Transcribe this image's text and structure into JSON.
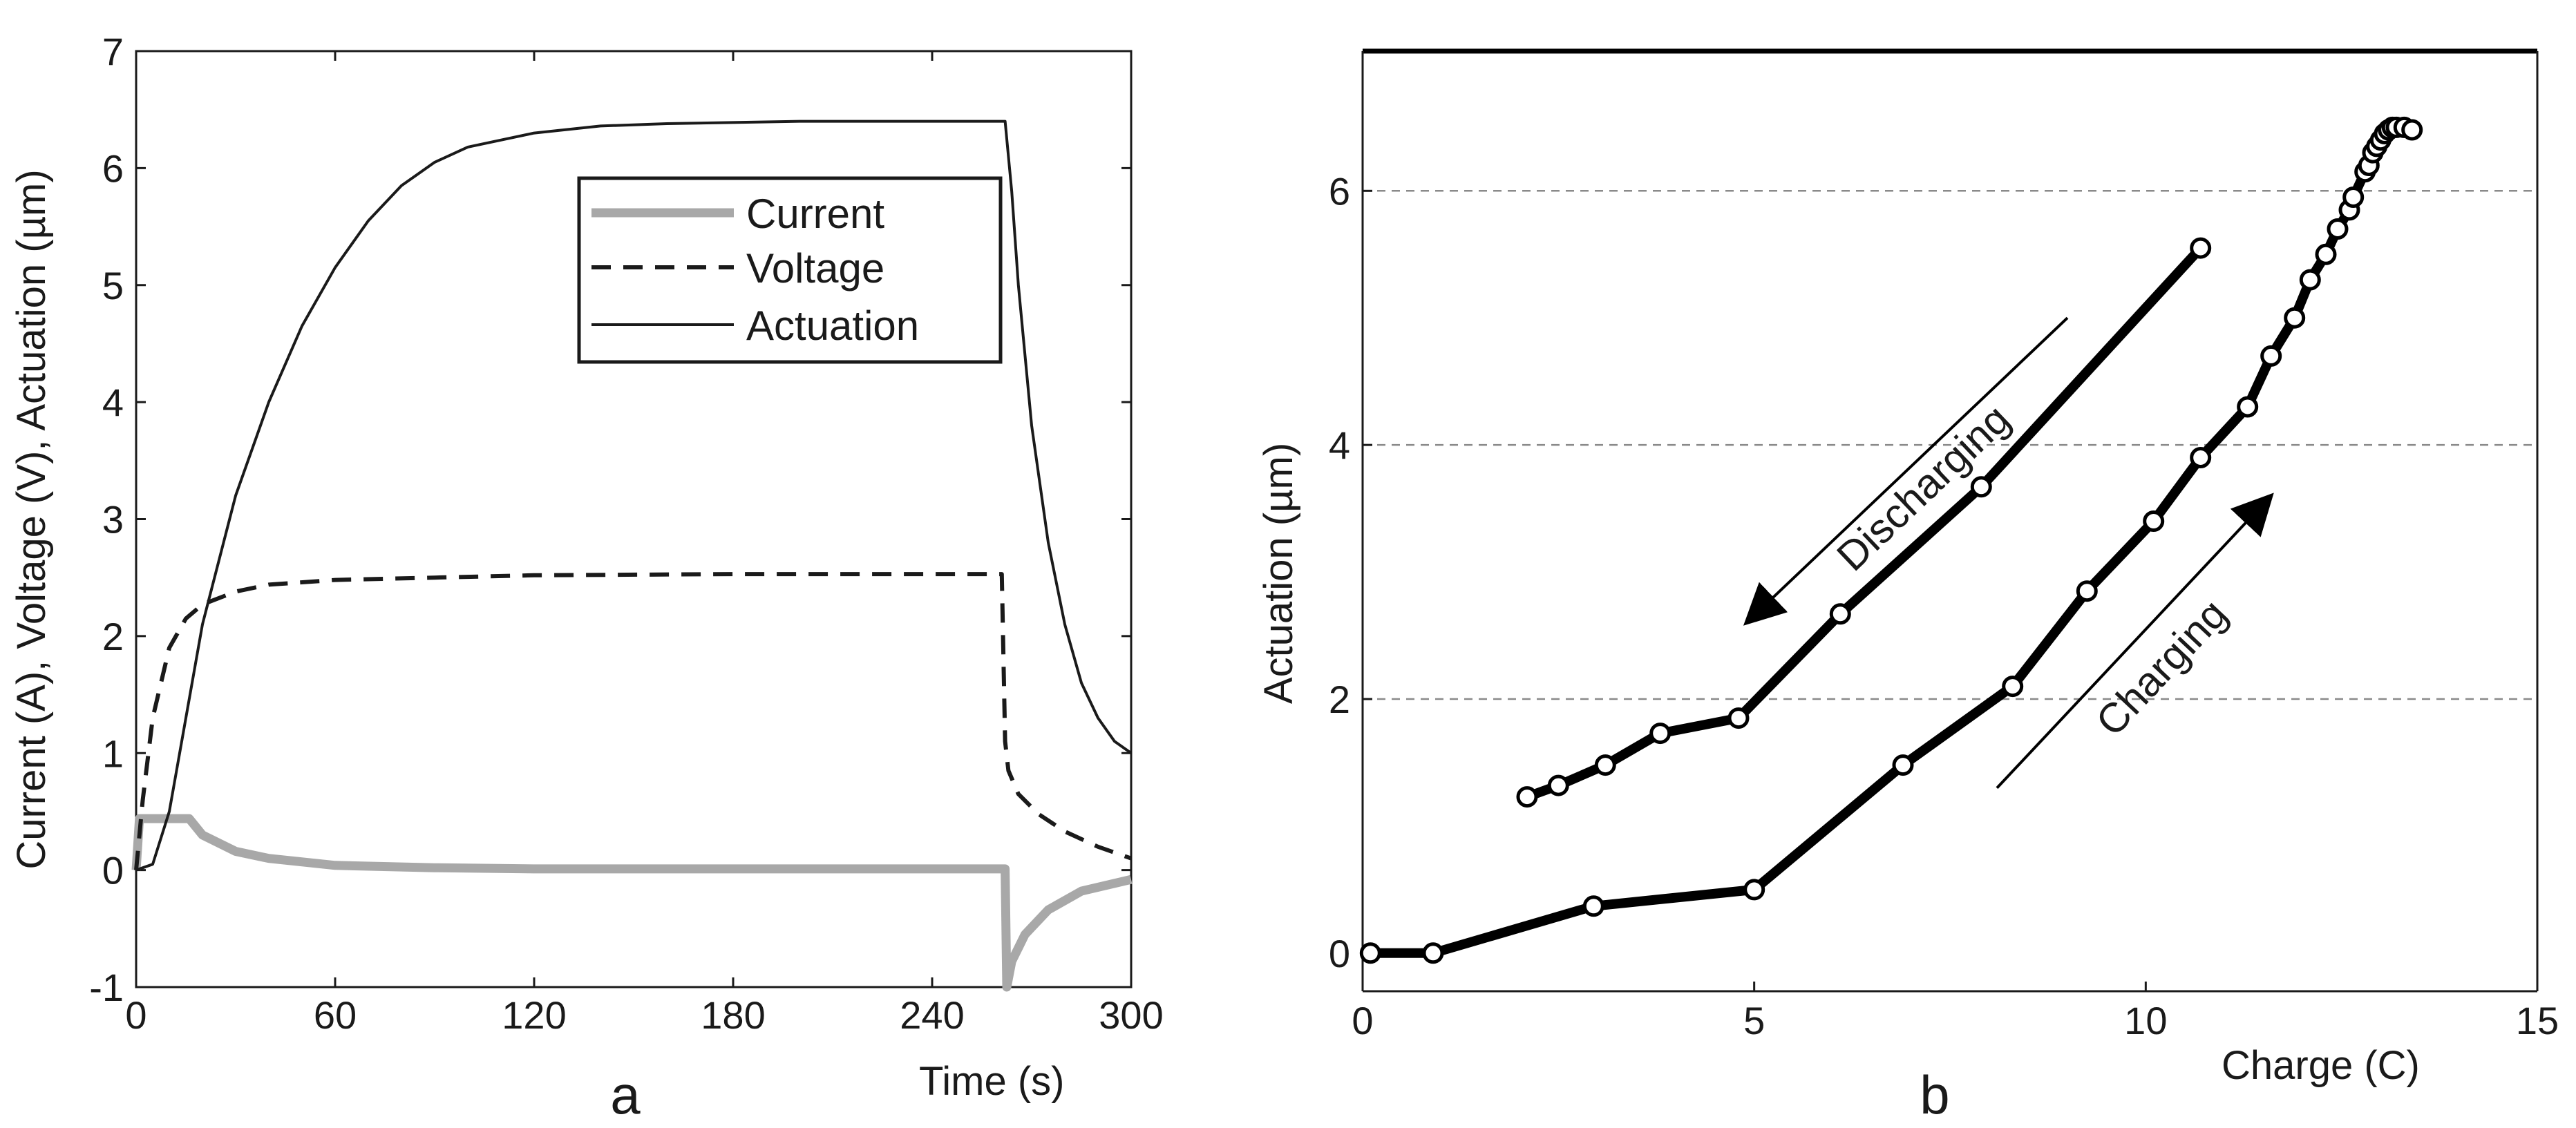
{
  "chart_data": [
    {
      "panel": "a",
      "type": "line",
      "title": "",
      "xlabel": "Time (s)",
      "ylabel": "Current (A), Voltage (V), Actuation (µm)",
      "xlim": [
        0,
        300
      ],
      "ylim": [
        -1,
        7
      ],
      "xticks": [
        "0",
        "60",
        "120",
        "180",
        "240",
        "300"
      ],
      "yticks": [
        "-1",
        "0",
        "1",
        "2",
        "3",
        "4",
        "5",
        "6",
        "7"
      ],
      "grid": false,
      "legend_position": "top-right",
      "series": [
        {
          "name": "Current",
          "style": "solid-thick",
          "color": "#a8a8a8",
          "x": [
            0,
            1,
            2,
            10,
            16,
            20,
            30,
            40,
            60,
            90,
            120,
            180,
            240,
            262,
            262.5,
            264,
            268,
            275,
            285,
            300
          ],
          "y": [
            0,
            0.44,
            0.44,
            0.44,
            0.44,
            0.3,
            0.16,
            0.1,
            0.04,
            0.02,
            0.01,
            0.01,
            0.01,
            0.01,
            -1.0,
            -0.78,
            -0.55,
            -0.34,
            -0.18,
            -0.08
          ]
        },
        {
          "name": "Voltage",
          "style": "dashed",
          "color": "#1a1a1a",
          "x": [
            0,
            2,
            5,
            10,
            15,
            20,
            30,
            40,
            60,
            90,
            120,
            180,
            240,
            261,
            262,
            263,
            266,
            272,
            280,
            290,
            300
          ],
          "y": [
            0,
            0.6,
            1.3,
            1.9,
            2.15,
            2.27,
            2.38,
            2.44,
            2.48,
            2.5,
            2.52,
            2.53,
            2.53,
            2.53,
            1.1,
            0.85,
            0.65,
            0.48,
            0.33,
            0.2,
            0.1
          ]
        },
        {
          "name": "Actuation",
          "style": "solid",
          "color": "#1a1a1a",
          "x": [
            0,
            5,
            10,
            15,
            20,
            30,
            40,
            50,
            60,
            70,
            80,
            90,
            100,
            120,
            140,
            160,
            200,
            240,
            262,
            264,
            266,
            270,
            275,
            280,
            285,
            290,
            295,
            300
          ],
          "y": [
            0,
            0.05,
            0.5,
            1.3,
            2.1,
            3.2,
            4.0,
            4.65,
            5.15,
            5.55,
            5.85,
            6.05,
            6.18,
            6.3,
            6.36,
            6.38,
            6.4,
            6.4,
            6.4,
            5.8,
            5.0,
            3.8,
            2.8,
            2.1,
            1.6,
            1.3,
            1.1,
            1.0
          ]
        }
      ]
    },
    {
      "panel": "b",
      "type": "line",
      "title": "",
      "xlabel": "Charge (C)",
      "ylabel": "Actuation (µm)",
      "xlim": [
        0,
        15
      ],
      "ylim": [
        -0.3,
        7.1
      ],
      "xticks": [
        "0",
        "5",
        "10",
        "15"
      ],
      "yticks": [
        "0",
        "2",
        "4",
        "6"
      ],
      "grid": "horizontal-dashed",
      "annotations": [
        {
          "text": "Discharging",
          "arrow_from": [
            9.0,
            5.0
          ],
          "arrow_to": [
            4.9,
            2.6
          ]
        },
        {
          "text": "Charging",
          "arrow_from": [
            8.1,
            1.3
          ],
          "arrow_to": [
            11.6,
            3.6
          ]
        }
      ],
      "series": [
        {
          "name": "Charging",
          "style": "line-markers",
          "color": "#000000",
          "x": [
            0.1,
            0.9,
            2.95,
            5.0,
            6.9,
            8.3,
            9.25,
            10.1,
            10.7,
            11.3,
            11.6,
            11.9,
            12.1,
            12.3,
            12.45,
            12.6,
            12.65,
            12.8,
            12.85,
            12.9,
            12.95,
            13.0,
            13.05,
            13.1,
            13.15,
            13.2,
            13.3,
            13.4
          ],
          "y": [
            0.0,
            0.0,
            0.37,
            0.5,
            1.48,
            2.1,
            2.85,
            3.4,
            3.9,
            4.3,
            4.7,
            5.0,
            5.3,
            5.5,
            5.7,
            5.85,
            5.95,
            6.15,
            6.2,
            6.3,
            6.35,
            6.4,
            6.45,
            6.48,
            6.5,
            6.5,
            6.5,
            6.48
          ]
        },
        {
          "name": "Discharging",
          "style": "line-markers",
          "color": "#000000",
          "x": [
            2.1,
            2.5,
            3.1,
            3.8,
            4.8,
            6.1,
            7.9,
            10.7
          ],
          "y": [
            1.23,
            1.32,
            1.48,
            1.73,
            1.85,
            2.67,
            3.67,
            5.55
          ]
        }
      ]
    }
  ],
  "panel_labels": {
    "a": "a",
    "b": "b"
  },
  "annotation_text": {
    "discharging": "Discharging",
    "charging": "Charging"
  }
}
